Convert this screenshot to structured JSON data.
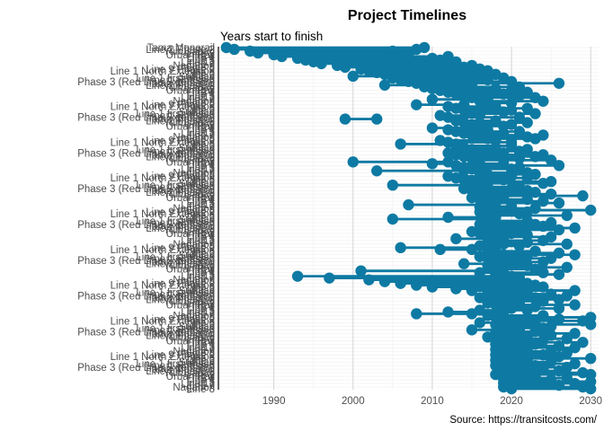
{
  "chart_data": {
    "type": "dumbbell",
    "title": "Project Timelines",
    "subtitle": "Years start to finish",
    "caption": "Source: https://transitcosts.com/",
    "xlim": [
      1983,
      2031
    ],
    "x_ticks": [
      "1990",
      "2000",
      "2010",
      "2020",
      "2030"
    ],
    "x_tick_values": [
      1990,
      2000,
      2010,
      2020,
      2030
    ],
    "grid": "vertical major and minor lines, faint horizontal row lines",
    "color": "#0e7aa3",
    "y_labels": [
      "Tama Monorail",
      "Line 2",
      "Line 1",
      "Line 7",
      "Line 9 Phase 2",
      "Line 3",
      "Line 1 Phase 3",
      "Line 2 Phase 2",
      "Urban Rail",
      "Line 5",
      "Nagahori",
      "Line 1 North Extension",
      "Sullivan",
      "Phase 3 (Red Line Extension)",
      "Yunusabad",
      "Line 4",
      "Line 13",
      "Line 8",
      "Line 6",
      "Line 1 first phase"
    ],
    "projects": [
      [
        1984,
        2009
      ],
      [
        1985,
        2008
      ],
      [
        1987,
        2005
      ],
      [
        1988,
        2006
      ],
      [
        1990,
        2007
      ],
      [
        1991,
        2012
      ],
      [
        1993,
        2010
      ],
      [
        1994,
        2011
      ],
      [
        1995,
        2013
      ],
      [
        1996,
        2012
      ],
      [
        1998,
        2015
      ],
      [
        1999,
        2014
      ],
      [
        2001,
        2016
      ],
      [
        2002,
        2017
      ],
      [
        2003,
        2015
      ],
      [
        2004,
        2018
      ],
      [
        2000,
        2016
      ],
      [
        2005,
        2019
      ],
      [
        2006,
        2017
      ],
      [
        2007,
        2020
      ],
      [
        2008,
        2026
      ],
      [
        2004,
        2015
      ],
      [
        2009,
        2021
      ],
      [
        2010,
        2018
      ],
      [
        2011,
        2020
      ],
      [
        2012,
        2022
      ],
      [
        2013,
        2019
      ],
      [
        2014,
        2021
      ],
      [
        2015,
        2023
      ],
      [
        2010,
        2017
      ],
      [
        2016,
        2024
      ],
      [
        2017,
        2020
      ],
      [
        2008,
        2014
      ],
      [
        2012,
        2018
      ],
      [
        2013,
        2022
      ],
      [
        2014,
        2020
      ],
      [
        2015,
        2019
      ],
      [
        2016,
        2023
      ],
      [
        2011,
        2016
      ],
      [
        2012,
        2021
      ],
      [
        1999,
        2003
      ],
      [
        2013,
        2018
      ],
      [
        2014,
        2022
      ],
      [
        2015,
        2020
      ],
      [
        2016,
        2019
      ],
      [
        2010,
        2015
      ],
      [
        2012,
        2017
      ],
      [
        2013,
        2021
      ],
      [
        2014,
        2019
      ],
      [
        2015,
        2024
      ],
      [
        2016,
        2022
      ],
      [
        2017,
        2023
      ],
      [
        2011,
        2018
      ],
      [
        2012,
        2020
      ],
      [
        2006,
        2013
      ],
      [
        2013,
        2020
      ],
      [
        2014,
        2018
      ],
      [
        2015,
        2022
      ],
      [
        2016,
        2021
      ],
      [
        2012,
        2019
      ],
      [
        2013,
        2024
      ],
      [
        2014,
        2023
      ],
      [
        2015,
        2021
      ],
      [
        2016,
        2025
      ],
      [
        2000,
        2012
      ],
      [
        2010,
        2019
      ],
      [
        2013,
        2026
      ],
      [
        2014,
        2021
      ],
      [
        2015,
        2020
      ],
      [
        2003,
        2014
      ],
      [
        2016,
        2022
      ],
      [
        2017,
        2023
      ],
      [
        2012,
        2020
      ],
      [
        2013,
        2022
      ],
      [
        2014,
        2019
      ],
      [
        2015,
        2025
      ],
      [
        2016,
        2024
      ],
      [
        2005,
        2016
      ],
      [
        2017,
        2021
      ],
      [
        2014,
        2020
      ],
      [
        2015,
        2022
      ],
      [
        2016,
        2023
      ],
      [
        2017,
        2025
      ],
      [
        2018,
        2029
      ],
      [
        2015,
        2019
      ],
      [
        2016,
        2022
      ],
      [
        2017,
        2024
      ],
      [
        2018,
        2026
      ],
      [
        2007,
        2017
      ],
      [
        2016,
        2020
      ],
      [
        2017,
        2023
      ],
      [
        2018,
        2030
      ],
      [
        2016,
        2022
      ],
      [
        2017,
        2021
      ],
      [
        2018,
        2027
      ],
      [
        2012,
        2018
      ],
      [
        2005,
        2017
      ],
      [
        2017,
        2022
      ],
      [
        2018,
        2025
      ],
      [
        2016,
        2023
      ],
      [
        2017,
        2024
      ],
      [
        2018,
        2028
      ],
      [
        2019,
        2026
      ],
      [
        2015,
        2021
      ],
      [
        2016,
        2020
      ],
      [
        2017,
        2022
      ],
      [
        2018,
        2025
      ],
      [
        2013,
        2019
      ],
      [
        2017,
        2024
      ],
      [
        2018,
        2022
      ],
      [
        2019,
        2027
      ],
      [
        2016,
        2021
      ],
      [
        2006,
        2018
      ],
      [
        2011,
        2015
      ],
      [
        2017,
        2023
      ],
      [
        2018,
        2026
      ],
      [
        2019,
        2028
      ],
      [
        2016,
        2022
      ],
      [
        2017,
        2025
      ],
      [
        2018,
        2021
      ],
      [
        2019,
        2024
      ],
      [
        2014,
        2020
      ],
      [
        2017,
        2022
      ],
      [
        2018,
        2027
      ],
      [
        2019,
        2023
      ],
      [
        2001,
        2018
      ],
      [
        2016,
        2024
      ],
      [
        2018,
        2026
      ],
      [
        1993,
        2020
      ],
      [
        1997,
        2021
      ],
      [
        2002,
        2020
      ],
      [
        2004,
        2019
      ],
      [
        2006,
        2022
      ],
      [
        2008,
        2023
      ],
      [
        2010,
        2024
      ],
      [
        2013,
        2021
      ],
      [
        2015,
        2028
      ],
      [
        2017,
        2022
      ],
      [
        2018,
        2025
      ],
      [
        2019,
        2027
      ],
      [
        2016,
        2023
      ],
      [
        2018,
        2026
      ],
      [
        2019,
        2024
      ],
      [
        2017,
        2021
      ],
      [
        2018,
        2028
      ],
      [
        2019,
        2023
      ],
      [
        2020,
        2026
      ],
      [
        2016,
        2022
      ],
      [
        2012,
        2019
      ],
      [
        2008,
        2015
      ],
      [
        2017,
        2024
      ],
      [
        2018,
        2030
      ],
      [
        2019,
        2026
      ],
      [
        2020,
        2029
      ],
      [
        2016,
        2023
      ],
      [
        2018,
        2030
      ],
      [
        2019,
        2025
      ],
      [
        2020,
        2024
      ],
      [
        2015,
        2021
      ],
      [
        2018,
        2023
      ],
      [
        2019,
        2028
      ],
      [
        2020,
        2025
      ],
      [
        2017,
        2022
      ],
      [
        2018,
        2027
      ],
      [
        2019,
        2024
      ],
      [
        2020,
        2029
      ],
      [
        2018,
        2023
      ],
      [
        2019,
        2026
      ],
      [
        2020,
        2028
      ],
      [
        2018,
        2022
      ],
      [
        2019,
        2025
      ],
      [
        2020,
        2027
      ],
      [
        2018,
        2024
      ],
      [
        2019,
        2026
      ],
      [
        2020,
        2030
      ],
      [
        2018,
        2022
      ],
      [
        2019,
        2025
      ],
      [
        2020,
        2028
      ],
      [
        2018,
        2023
      ],
      [
        2019,
        2027
      ],
      [
        2020,
        2024
      ],
      [
        2019,
        2026
      ],
      [
        2020,
        2029
      ],
      [
        2018,
        2030
      ],
      [
        2019,
        2023
      ],
      [
        2020,
        2027
      ],
      [
        2019,
        2025
      ],
      [
        2020,
        2030
      ],
      [
        2019,
        2028
      ],
      [
        2020,
        2026
      ],
      [
        2019,
        2029
      ],
      [
        2020,
        2030
      ]
    ]
  }
}
